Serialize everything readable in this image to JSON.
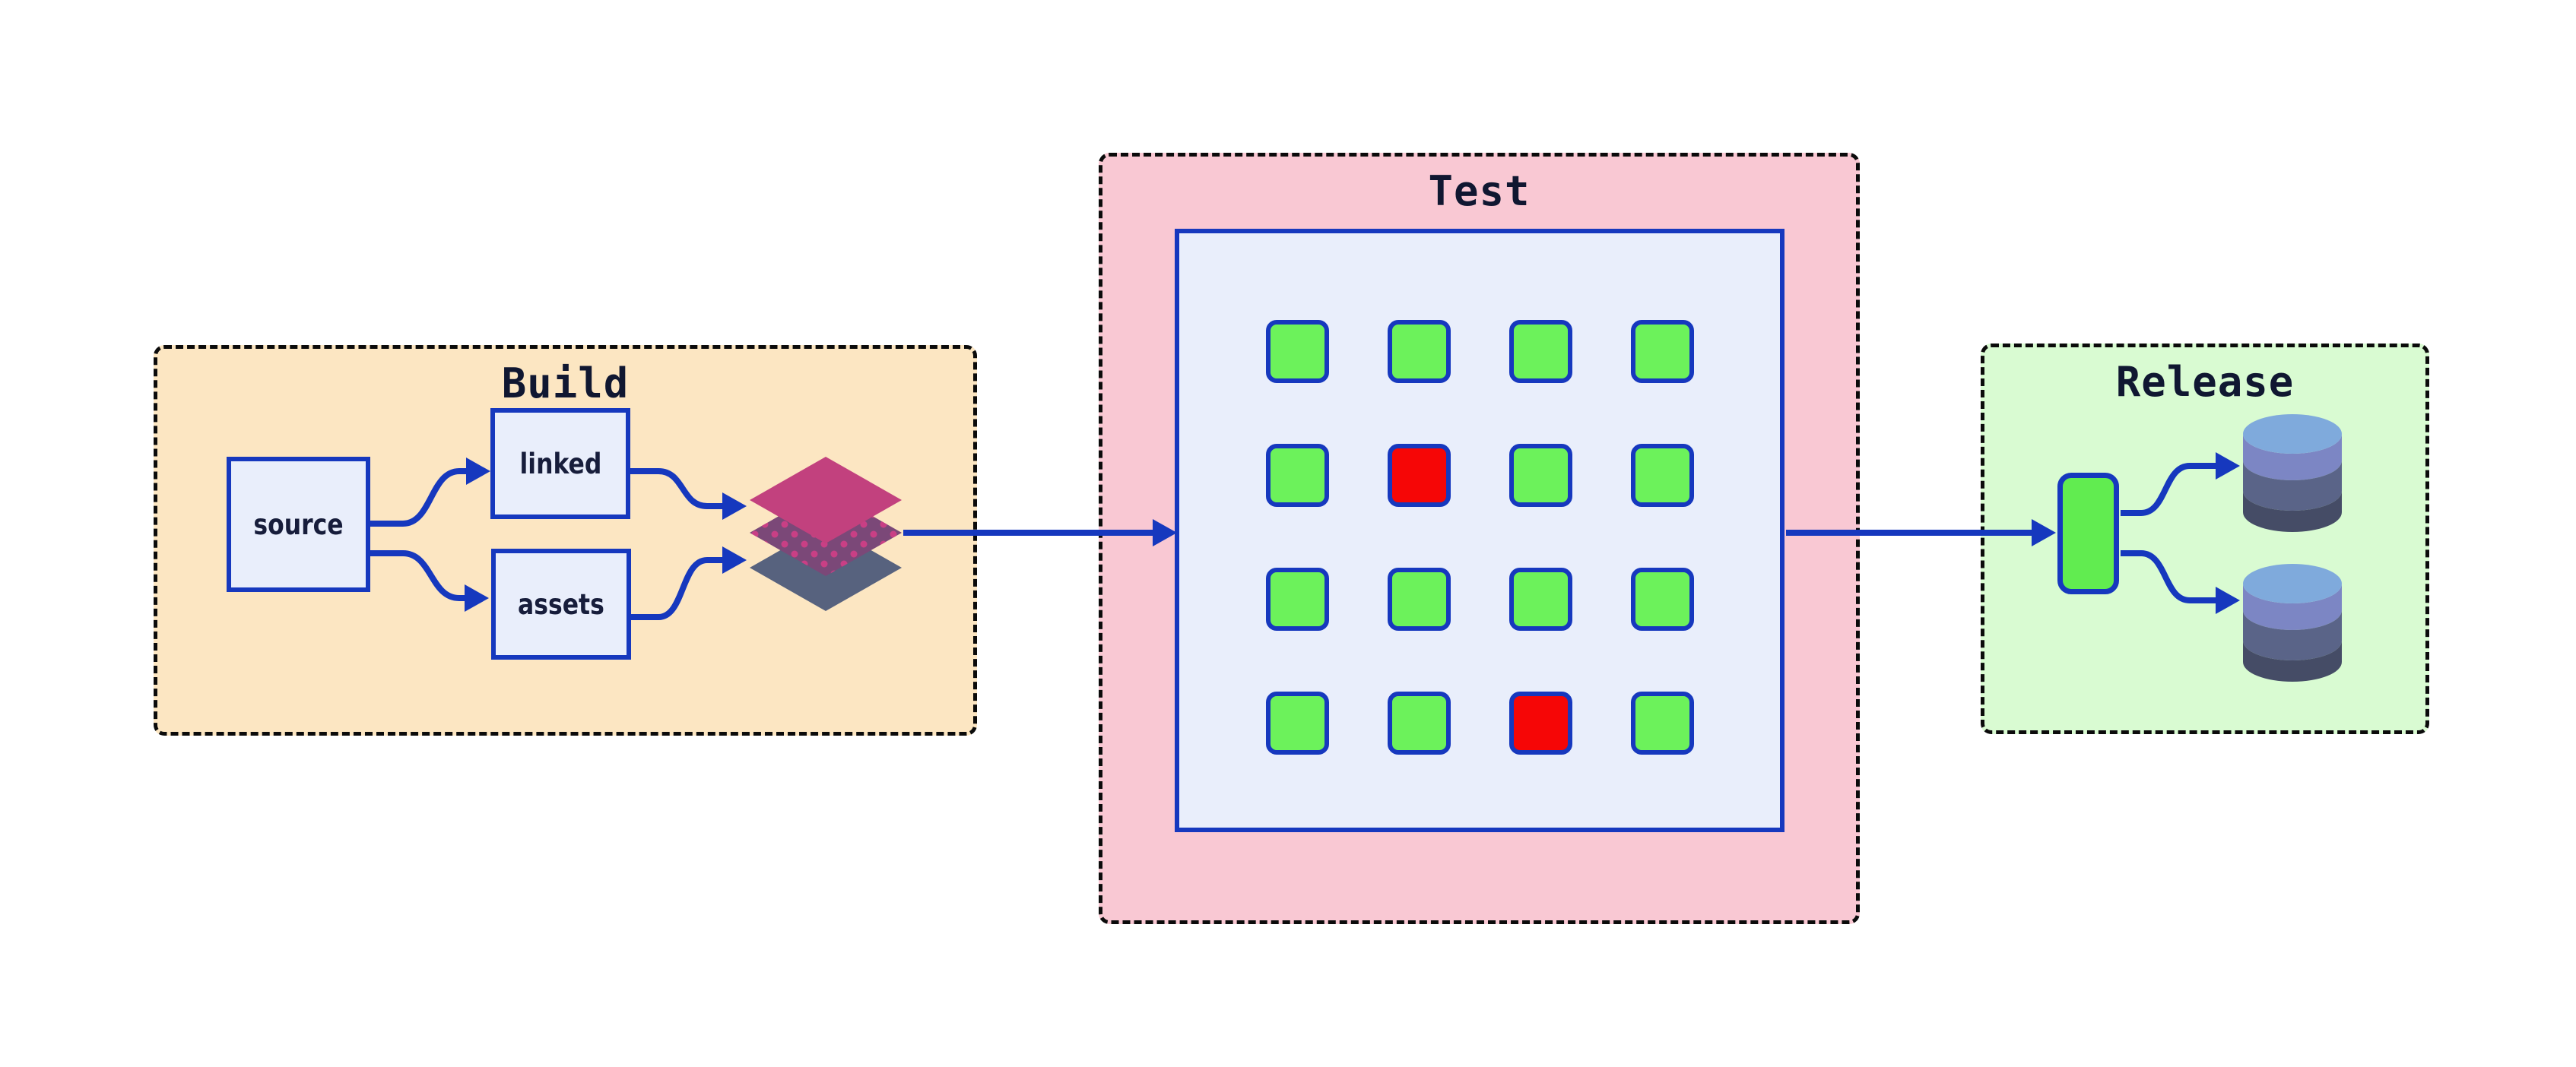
{
  "diagram": {
    "background_color": "#ffffff",
    "stroke_color": "#1638BE",
    "title_color": "#101731",
    "node_fill": "#E9EEFB",
    "node_text_color": "#171D3B",
    "sections": {
      "build": {
        "title": "Build",
        "bg": "#FCE6C2",
        "nodes": [
          {
            "id": "source",
            "label": "source"
          },
          {
            "id": "linked",
            "label": "linked"
          },
          {
            "id": "assets",
            "label": "assets"
          }
        ],
        "artifact_icon": "layer-stack-icon",
        "layer_colors": [
          "#C2417E",
          "#7B4878",
          "#57627E"
        ],
        "layer_dot_color": "#C93F85"
      },
      "test": {
        "title": "Test",
        "bg": "#F9C8D3",
        "grid": {
          "rows": 4,
          "cols": 4,
          "pass_color": "#6CF25B",
          "fail_color": "#F60606",
          "statuses": [
            [
              "pass",
              "pass",
              "pass",
              "pass"
            ],
            [
              "pass",
              "fail",
              "pass",
              "pass"
            ],
            [
              "pass",
              "pass",
              "pass",
              "pass"
            ],
            [
              "pass",
              "pass",
              "fail",
              "pass"
            ]
          ]
        }
      },
      "release": {
        "title": "Release",
        "bg": "#D9FBD2",
        "pill_color": "#61EC50",
        "database_count": 2,
        "database_icon": "database-icon",
        "db_band_colors": [
          "#7FAADC",
          "#7C86C4",
          "#5A6488",
          "#454C66"
        ]
      }
    }
  }
}
